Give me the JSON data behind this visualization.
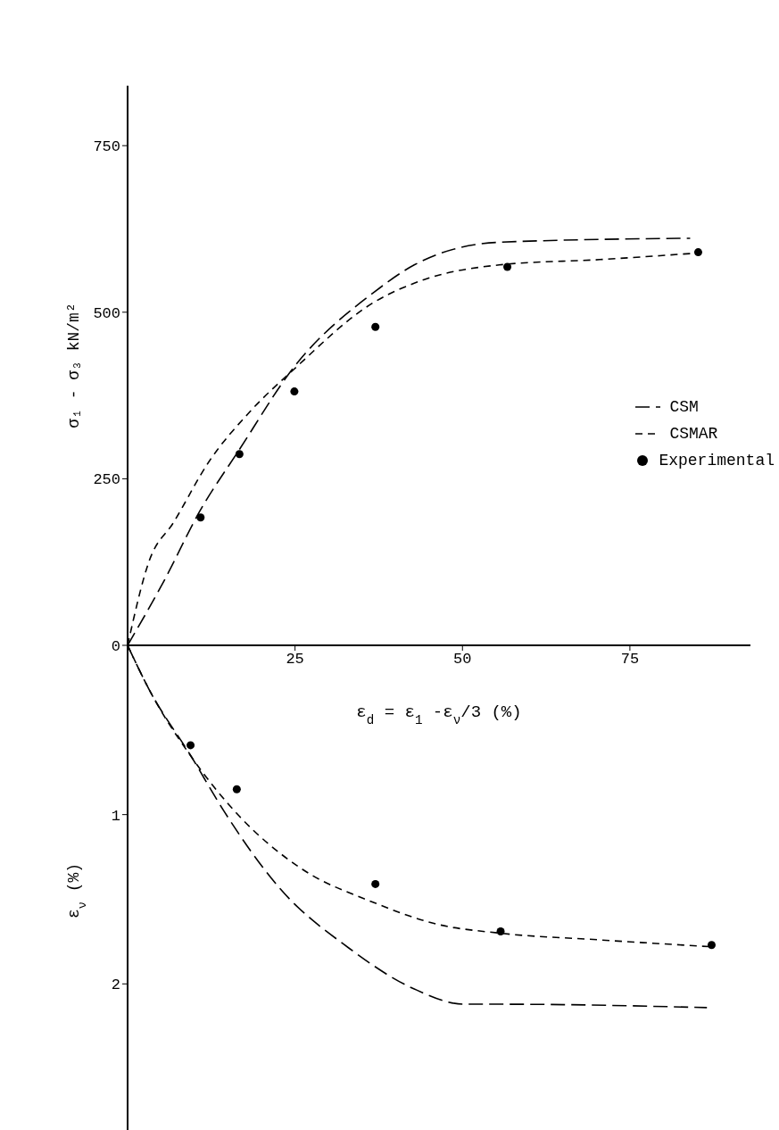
{
  "chart_data": [
    {
      "type": "line",
      "xlabel": "ε$_{d}$ = ε$_{1}$ -ε$_{ν}$/3 (%)",
      "ylabel": "σ₁ - σ₃ kN/m²",
      "xlim": [
        0,
        93
      ],
      "xticks": [
        25,
        50,
        75
      ],
      "ylim": [
        0,
        840
      ],
      "yticks": [
        0,
        250,
        500,
        750
      ],
      "legend": "right",
      "series": [
        {
          "name": "CSM",
          "line_style": "dashed",
          "color": "#000000",
          "x": [
            0,
            5.4,
            10.7,
            16.7,
            24.8,
            36.8,
            42.8,
            55.5,
            84
          ],
          "values": [
            0,
            96,
            200,
            294,
            417,
            530,
            571,
            605,
            611
          ]
        },
        {
          "name": "CSMAR",
          "line_style": "dashed",
          "color": "#000000",
          "x": [
            0,
            3.2,
            6.9,
            12.1,
            18.2,
            24.8,
            36.8,
            44.3,
            55.5,
            70.5,
            84
          ],
          "values": [
            0,
            126,
            185,
            275,
            350,
            414,
            515,
            549,
            571,
            579,
            588
          ]
        },
        {
          "name": "Experimental",
          "type": "scatter",
          "marker": "circle",
          "color": "#000000",
          "x": [
            10.9,
            16.7,
            24.9,
            37.0,
            56.7,
            85.2
          ],
          "values": [
            192,
            287,
            381,
            478,
            568,
            590
          ]
        }
      ]
    },
    {
      "type": "line",
      "ylabel": "ε$_{ν}$ (%)",
      "xlim": [
        0,
        93
      ],
      "ylim": [
        2.9,
        0
      ],
      "yticks": [
        1,
        2
      ],
      "tick_labels": "y",
      "series": [
        {
          "line_style": "dashed",
          "color": "#000000",
          "x": [
            0,
            3.2,
            9.4,
            14.4,
            22.6,
            33.1,
            42.8,
            50.3,
            55.5,
            86.5
          ],
          "values": [
            0,
            0.26,
            0.65,
            0.98,
            1.43,
            1.79,
            2.03,
            2.12,
            2.12,
            2.14
          ]
        },
        {
          "line_style": "dashed",
          "color": "#000000",
          "x": [
            0,
            3.2,
            9.9,
            16.7,
            25.6,
            36.8,
            46.5,
            55.5,
            70.5,
            86.9
          ],
          "values": [
            0,
            0.26,
            0.68,
            1.01,
            1.31,
            1.52,
            1.65,
            1.7,
            1.74,
            1.78
          ]
        },
        {
          "type": "scatter",
          "marker": "circle",
          "color": "#000000",
          "x": [
            9.4,
            16.3,
            37.0,
            55.7,
            87.2
          ],
          "values": [
            0.59,
            0.85,
            1.41,
            1.69,
            1.77
          ]
        }
      ]
    }
  ]
}
